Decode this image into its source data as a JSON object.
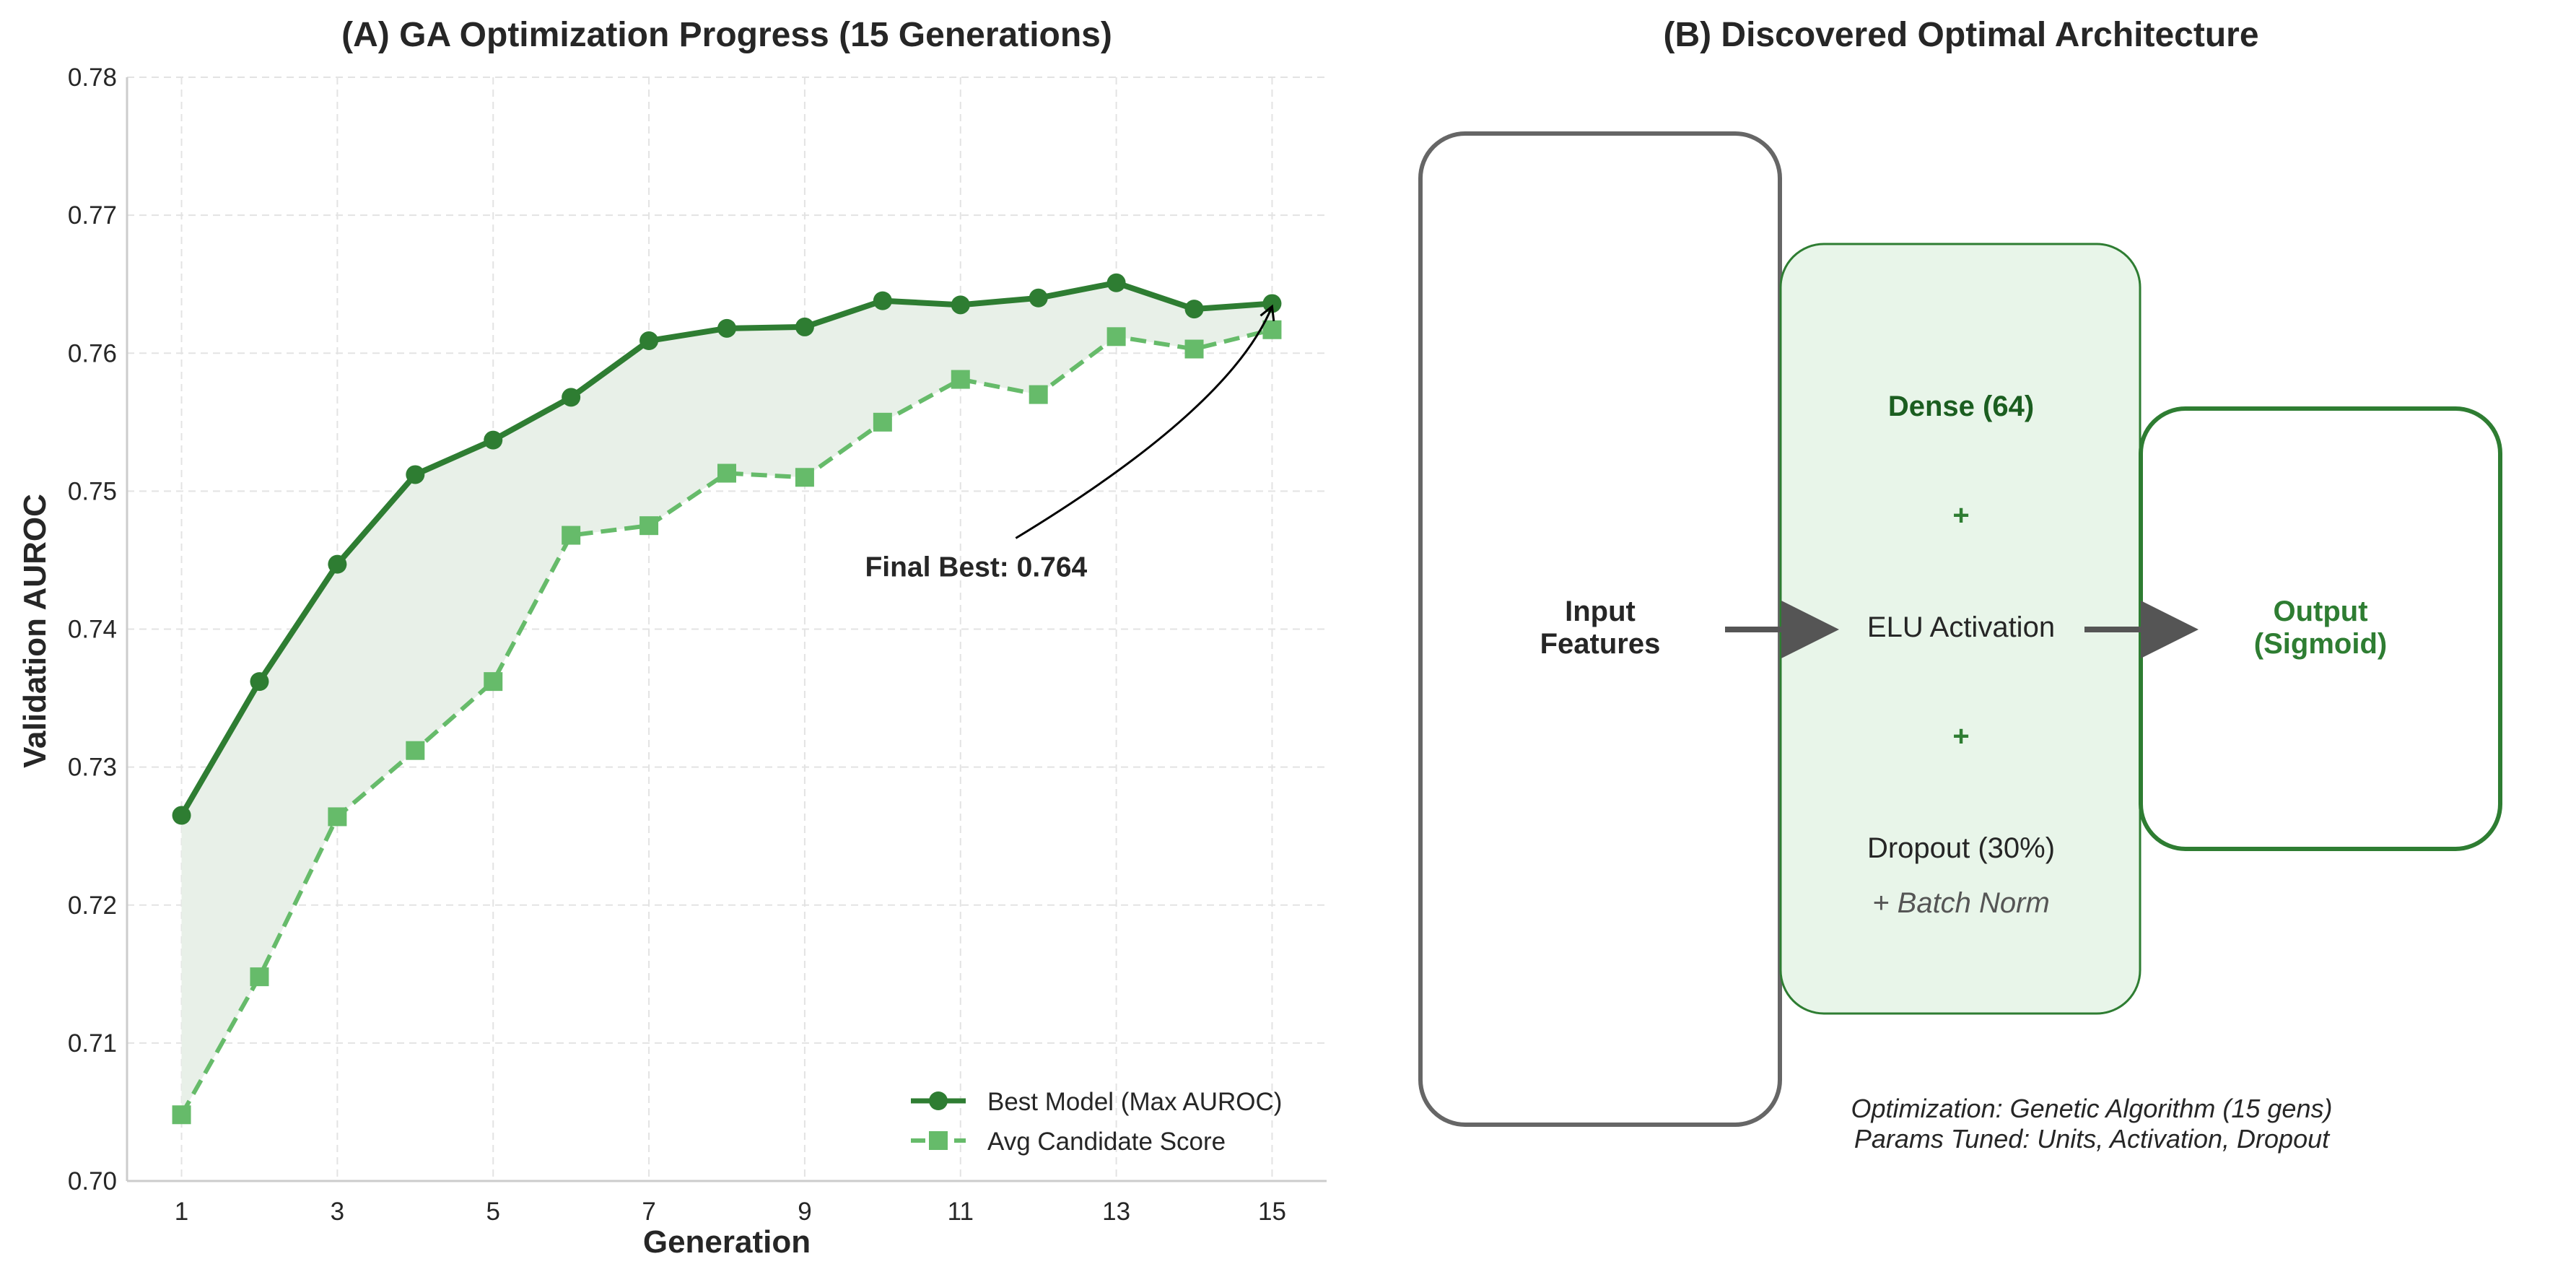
{
  "colors": {
    "best": "#2e7d32",
    "avg": "#66bb6a",
    "fill": "#e8f0e8",
    "grid": "#e3e3e3",
    "spine": "#cccccc",
    "text": "#262626",
    "box_gray": "#666666",
    "box_green_fill": "#e8f5e9",
    "arrow": "#555555"
  },
  "chart_data": [
    {
      "type": "line",
      "title": "(A) GA Optimization Progress (15 Generations)",
      "xlabel": "Generation",
      "ylabel": "Validation AUROC",
      "xlim": [
        0.3,
        15.7
      ],
      "ylim": [
        0.7,
        0.78
      ],
      "xticks": [
        1,
        3,
        5,
        7,
        9,
        11,
        13,
        15
      ],
      "yticks": [
        0.7,
        0.71,
        0.72,
        0.73,
        0.74,
        0.75,
        0.76,
        0.77,
        0.78
      ],
      "ytick_labels": [
        "0.70",
        "0.71",
        "0.72",
        "0.73",
        "0.74",
        "0.75",
        "0.76",
        "0.77",
        "0.78"
      ],
      "grid": true,
      "legend_position": "bottom-right",
      "x": [
        1,
        2,
        3,
        4,
        5,
        6,
        7,
        8,
        9,
        10,
        11,
        12,
        13,
        14,
        15
      ],
      "series": [
        {
          "name": "Best Model (Max AUROC)",
          "style": "solid",
          "marker": "circle",
          "values": [
            0.7265,
            0.7362,
            0.7447,
            0.7512,
            0.7537,
            0.7568,
            0.7609,
            0.7618,
            0.7619,
            0.7638,
            0.7635,
            0.764,
            0.7651,
            0.7632,
            0.7636
          ]
        },
        {
          "name": "Avg Candidate Score",
          "style": "dashed",
          "marker": "square",
          "values": [
            0.7048,
            0.7148,
            0.7264,
            0.7312,
            0.7362,
            0.7468,
            0.7475,
            0.7513,
            0.751,
            0.755,
            0.7581,
            0.757,
            0.7612,
            0.7603,
            0.7617
          ]
        }
      ],
      "annotation": {
        "text": "Final Best: 0.764",
        "x": 15,
        "y": 0.7636,
        "text_x": 11.2,
        "text_y": 0.7445
      }
    }
  ],
  "panel_b": {
    "title": "(B) Discovered Optimal Architecture",
    "input_box": {
      "line1": "Input",
      "line2": "Features"
    },
    "hidden_box": {
      "dense": "Dense (64)",
      "plus1": "+",
      "activation": "ELU Activation",
      "plus2": "+",
      "dropout": "Dropout (30%)",
      "batch_norm": "+ Batch Norm"
    },
    "output_box": {
      "line1": "Output",
      "line2": "(Sigmoid)"
    },
    "note_line1": "Optimization: Genetic Algorithm (15 gens)",
    "note_line2": "Params Tuned: Units, Activation, Dropout"
  }
}
